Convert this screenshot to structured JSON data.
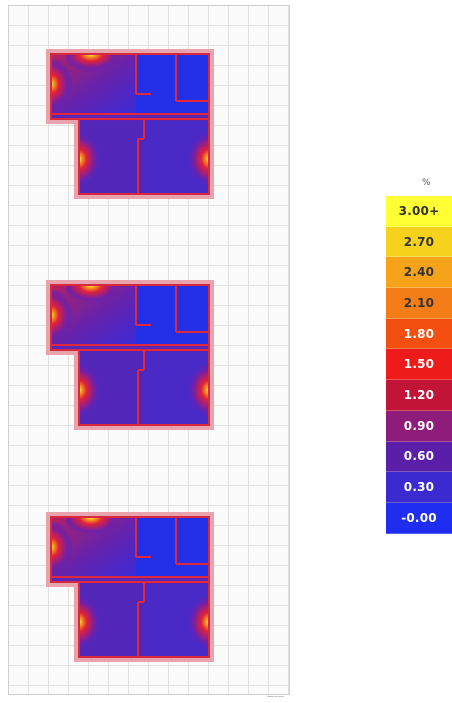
{
  "legend": {
    "unit": "%",
    "items": [
      {
        "label": "3.00+",
        "color": "#ffff33",
        "text": "#333333"
      },
      {
        "label": "2.70",
        "color": "#f7d21c",
        "text": "#333333"
      },
      {
        "label": "2.40",
        "color": "#f6a31a",
        "text": "#333333"
      },
      {
        "label": "2.10",
        "color": "#f57d17",
        "text": "#333333"
      },
      {
        "label": "1.80",
        "color": "#f24f10",
        "text": "#ffffff"
      },
      {
        "label": "1.50",
        "color": "#ee1b1b",
        "text": "#ffffff"
      },
      {
        "label": "1.20",
        "color": "#c21437",
        "text": "#ffffff"
      },
      {
        "label": "0.90",
        "color": "#8e1c7a",
        "text": "#ffffff"
      },
      {
        "label": "0.60",
        "color": "#5a1fa8",
        "text": "#ffffff"
      },
      {
        "label": "0.30",
        "color": "#3a2ad0",
        "text": "#ffffff"
      },
      {
        "label": "-0.00",
        "color": "#1e2df0",
        "text": "#ffffff"
      }
    ]
  },
  "floors": [
    {
      "level": "top"
    },
    {
      "level": "middle"
    },
    {
      "level": "bottom"
    }
  ],
  "scale_text": "—–—"
}
